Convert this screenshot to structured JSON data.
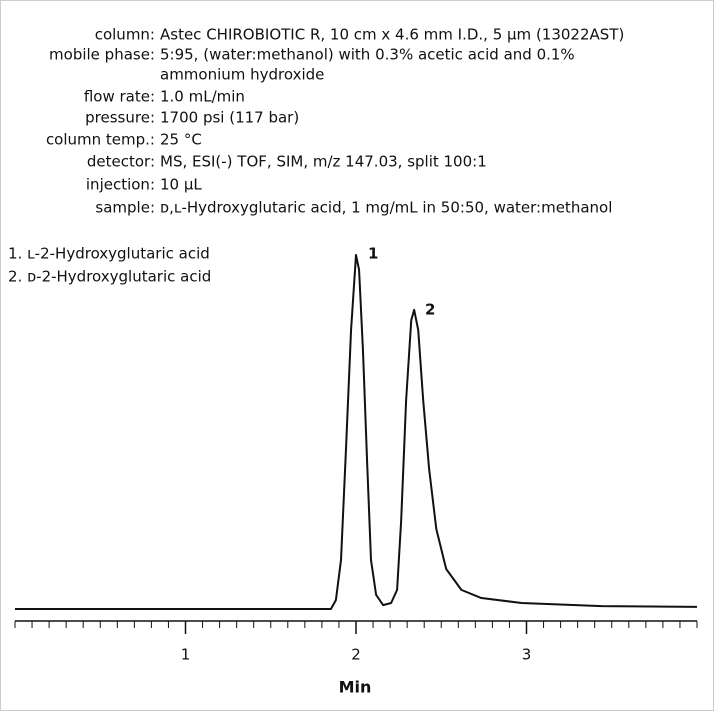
{
  "conditions": [
    {
      "label": "column:",
      "value": "Astec CHIROBIOTIC R, 10 cm x 4.6 mm I.D., 5 µm (13022AST)"
    },
    {
      "label": "mobile phase:",
      "value": "5:95, (water:methanol) with 0.3% acetic acid and 0.1%",
      "value_cont": "ammonium hydroxide"
    },
    {
      "label": "flow rate:",
      "value": "1.0 mL/min"
    },
    {
      "label": "pressure:",
      "value": "1700 psi (117 bar)"
    },
    {
      "label": "column temp.:",
      "value": "25 °C"
    },
    {
      "label": "detector:",
      "value": "MS, ESI(-) TOF, SIM, m/z 147.03, split 100:1"
    },
    {
      "label": "injection:",
      "value": "10 µL"
    },
    {
      "label": "sample:",
      "value": "ᴅ,ʟ-Hydroxyglutaric acid, 1 mg/mL in 50:50, water:methanol"
    }
  ],
  "chart_data": {
    "type": "line",
    "legend": [
      "1. ʟ-2-Hydroxyglutaric acid",
      "2. ᴅ-2-Hydroxyglutaric acid"
    ],
    "annotations": [
      "1",
      "2"
    ],
    "xlabel": "Min",
    "x": [
      0,
      1.853,
      1.882,
      1.912,
      1.941,
      1.971,
      2.0,
      2.018,
      2.041,
      2.065,
      2.088,
      2.118,
      2.159,
      2.206,
      2.241,
      2.265,
      2.294,
      2.324,
      2.341,
      2.365,
      2.394,
      2.429,
      2.471,
      2.529,
      2.618,
      2.735,
      2.971,
      3.441,
      4.0
    ],
    "series": [
      {
        "color": "#111111",
        "values": [
          0,
          0,
          2.5,
          13.8,
          44.9,
          78.8,
          100,
          95.8,
          72.9,
          41.8,
          13.8,
          4.0,
          1.1,
          1.7,
          5.4,
          25.1,
          59.0,
          81.6,
          84.5,
          78.8,
          59.0,
          39.5,
          22.6,
          11.3,
          5.4,
          3.1,
          1.7,
          0.8,
          0.6
        ]
      }
    ],
    "xlim": [
      0,
      4.0
    ],
    "ylim": [
      0,
      100
    ],
    "xticks": [
      1,
      2,
      3
    ],
    "xminor_ticks": [
      0,
      0.1,
      0.2,
      0.3,
      0.4,
      0.5,
      0.6,
      0.7,
      0.8,
      0.9,
      1.1,
      1.2,
      1.3,
      1.4,
      1.5,
      1.6,
      1.7,
      1.8,
      1.9,
      2.1,
      2.2,
      2.3,
      2.4,
      2.5,
      2.6,
      2.7,
      2.8,
      2.9,
      3.1,
      3.2,
      3.3,
      3.4,
      3.5,
      3.6,
      3.7,
      3.8,
      3.9,
      4.0
    ]
  }
}
